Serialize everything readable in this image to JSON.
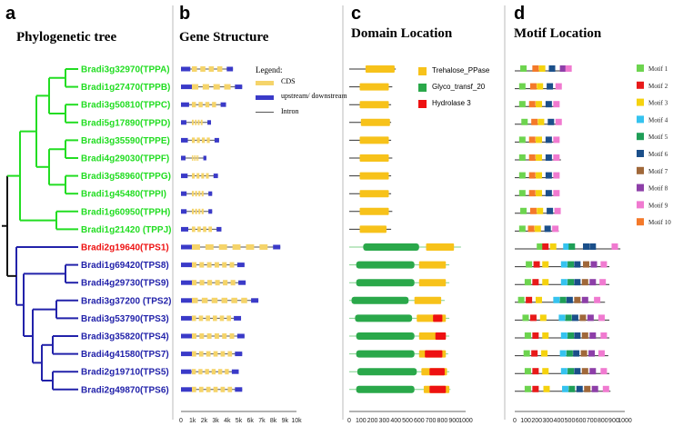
{
  "panels": {
    "a": {
      "letter": "a",
      "title": "Phylogenetic tree"
    },
    "b": {
      "letter": "b",
      "title": "Gene Structure"
    },
    "c": {
      "letter": "c",
      "title": "Domain Location"
    },
    "d": {
      "letter": "d",
      "title": "Motif Location"
    }
  },
  "colors": {
    "green_clade": "#22dd22",
    "red_clade": "#ee1111",
    "blue_clade": "#2222aa",
    "cds": "#f5d46a",
    "utr": "#3a3ac8",
    "trehalose": "#f7c21a",
    "glyco": "#2aa84a",
    "hydrolase": "#ee1111"
  },
  "genes": [
    {
      "label": "Bradi3g32970(TPPA)",
      "clade": "green"
    },
    {
      "label": "Bradi1g27470(TPPB)",
      "clade": "green"
    },
    {
      "label": "Bradi3g50810(TPPC)",
      "clade": "green"
    },
    {
      "label": "Bradi5g17890(TPPD)",
      "clade": "green"
    },
    {
      "label": "Bradi3g35590(TPPE)",
      "clade": "green"
    },
    {
      "label": "Bradi4g29030(TPPF)",
      "clade": "green"
    },
    {
      "label": "Bradi3g58960(TPPG)",
      "clade": "green"
    },
    {
      "label": "Bradi1g45480(TPPI)",
      "clade": "green"
    },
    {
      "label": "Bradi1g60950(TPPH)",
      "clade": "green"
    },
    {
      "label": "Bradi1g21420 (TPPJ)",
      "clade": "green"
    },
    {
      "label": "Bradi2g19640(TPS1)",
      "clade": "red"
    },
    {
      "label": "Bradi1g69420(TPS8)",
      "clade": "blue"
    },
    {
      "label": "Bradi4g29730(TPS9)",
      "clade": "blue"
    },
    {
      "label": "Bradi3g37200 (TPS2)",
      "clade": "blue"
    },
    {
      "label": "Bradi3g53790(TPS3)",
      "clade": "blue"
    },
    {
      "label": "Bradi3g35820(TPS4)",
      "clade": "blue"
    },
    {
      "label": "Bradi4g41580(TPS7)",
      "clade": "blue"
    },
    {
      "label": "Bradi2g19710(TPS5)",
      "clade": "blue"
    },
    {
      "label": "Bradi2g49870(TPS6)",
      "clade": "blue"
    }
  ],
  "gene_structure": {
    "legend_title": "Legend:",
    "legend_items": [
      {
        "label": "CDS",
        "kind": "cds"
      },
      {
        "label": "upstream/ downstream",
        "kind": "utr"
      },
      {
        "label": "Intron",
        "kind": "intron"
      }
    ],
    "axis_ticks": [
      "0",
      "1k",
      "2k",
      "3k",
      "4k",
      "5k",
      "6k",
      "7k",
      "8k",
      "9k",
      "10k"
    ],
    "axis_max": 10000,
    "gene_lengths": [
      4500,
      5300,
      3900,
      2600,
      3300,
      2200,
      3200,
      2700,
      2700,
      3500,
      8600,
      5500,
      5600,
      6700,
      5200,
      5500,
      5300,
      5000,
      5300
    ]
  },
  "domain_location": {
    "legend_items": [
      {
        "label": "Trehalose_PPase",
        "kind": "trehalose"
      },
      {
        "label": "Glyco_transf_20",
        "kind": "glyco"
      },
      {
        "label": "Hydrolase 3",
        "kind": "hydrolase"
      }
    ],
    "axis_ticks": [
      "0",
      "100",
      "200",
      "300",
      "400",
      "500",
      "600",
      "700",
      "800",
      "900",
      "1000"
    ],
    "axis_max": 1000,
    "proteins": [
      {
        "length": 400,
        "domains": [
          {
            "kind": "trehalose",
            "start": 140,
            "end": 390
          }
        ]
      },
      {
        "length": 370,
        "domains": [
          {
            "kind": "trehalose",
            "start": 90,
            "end": 340
          }
        ]
      },
      {
        "length": 360,
        "domains": [
          {
            "kind": "trehalose",
            "start": 90,
            "end": 340
          }
        ]
      },
      {
        "length": 360,
        "domains": [
          {
            "kind": "trehalose",
            "start": 100,
            "end": 350
          }
        ]
      },
      {
        "length": 360,
        "domains": [
          {
            "kind": "trehalose",
            "start": 90,
            "end": 340
          }
        ]
      },
      {
        "length": 370,
        "domains": [
          {
            "kind": "trehalose",
            "start": 90,
            "end": 340
          }
        ]
      },
      {
        "length": 360,
        "domains": [
          {
            "kind": "trehalose",
            "start": 90,
            "end": 340
          }
        ]
      },
      {
        "length": 360,
        "domains": [
          {
            "kind": "trehalose",
            "start": 90,
            "end": 340
          }
        ]
      },
      {
        "length": 370,
        "domains": [
          {
            "kind": "trehalose",
            "start": 90,
            "end": 340
          }
        ]
      },
      {
        "length": 360,
        "domains": [
          {
            "kind": "trehalose",
            "start": 90,
            "end": 320
          }
        ]
      },
      {
        "length": 960,
        "domains": [
          {
            "kind": "glyco",
            "start": 120,
            "end": 600
          },
          {
            "kind": "trehalose",
            "start": 660,
            "end": 900
          }
        ]
      },
      {
        "length": 860,
        "domains": [
          {
            "kind": "glyco",
            "start": 60,
            "end": 560
          },
          {
            "kind": "trehalose",
            "start": 600,
            "end": 830
          }
        ]
      },
      {
        "length": 860,
        "domains": [
          {
            "kind": "glyco",
            "start": 60,
            "end": 560
          },
          {
            "kind": "trehalose",
            "start": 600,
            "end": 830
          }
        ]
      },
      {
        "length": 820,
        "domains": [
          {
            "kind": "glyco",
            "start": 20,
            "end": 510
          },
          {
            "kind": "trehalose",
            "start": 560,
            "end": 790
          }
        ]
      },
      {
        "length": 860,
        "domains": [
          {
            "kind": "glyco",
            "start": 50,
            "end": 540
          },
          {
            "kind": "trehalose",
            "start": 580,
            "end": 830
          },
          {
            "kind": "hydrolase",
            "start": 720,
            "end": 800
          }
        ]
      },
      {
        "length": 860,
        "domains": [
          {
            "kind": "glyco",
            "start": 60,
            "end": 560
          },
          {
            "kind": "trehalose",
            "start": 600,
            "end": 830
          },
          {
            "kind": "hydrolase",
            "start": 740,
            "end": 830
          }
        ]
      },
      {
        "length": 850,
        "domains": [
          {
            "kind": "glyco",
            "start": 60,
            "end": 560
          },
          {
            "kind": "trehalose",
            "start": 600,
            "end": 830
          },
          {
            "kind": "hydrolase",
            "start": 650,
            "end": 800
          }
        ]
      },
      {
        "length": 860,
        "domains": [
          {
            "kind": "glyco",
            "start": 70,
            "end": 580
          },
          {
            "kind": "trehalose",
            "start": 620,
            "end": 840
          },
          {
            "kind": "hydrolase",
            "start": 690,
            "end": 820
          }
        ]
      },
      {
        "length": 870,
        "domains": [
          {
            "kind": "glyco",
            "start": 60,
            "end": 560
          },
          {
            "kind": "trehalose",
            "start": 640,
            "end": 860
          },
          {
            "kind": "hydrolase",
            "start": 690,
            "end": 830
          }
        ]
      }
    ]
  },
  "motif_location": {
    "legend": [
      {
        "label": "Motif 1",
        "color": "#6dd44f"
      },
      {
        "label": "Motif 2",
        "color": "#e81919"
      },
      {
        "label": "Motif 3",
        "color": "#f5d20f"
      },
      {
        "label": "Motif 4",
        "color": "#35c3ef"
      },
      {
        "label": "Motif 5",
        "color": "#1f9e57"
      },
      {
        "label": "Motif 6",
        "color": "#1b4f8a"
      },
      {
        "label": "Motif 7",
        "color": "#a0683a"
      },
      {
        "label": "Motif 8",
        "color": "#8d3fa8"
      },
      {
        "label": "Motif 9",
        "color": "#f07ad0"
      },
      {
        "label": "Motif 10",
        "color": "#f4792a"
      }
    ],
    "axis_ticks": [
      "0",
      "100",
      "200",
      "300",
      "400",
      "500",
      "600",
      "700",
      "800",
      "900",
      "1000"
    ],
    "axis_max": 1000,
    "proteins": [
      {
        "length": 500,
        "motifs": [
          [
            1,
            50
          ],
          [
            10,
            160
          ],
          [
            3,
            220
          ],
          [
            6,
            310
          ],
          [
            8,
            410
          ],
          [
            9,
            460
          ]
        ]
      },
      {
        "length": 420,
        "motifs": [
          [
            1,
            40
          ],
          [
            10,
            140
          ],
          [
            3,
            200
          ],
          [
            6,
            290
          ],
          [
            9,
            370
          ]
        ]
      },
      {
        "length": 400,
        "motifs": [
          [
            1,
            40
          ],
          [
            10,
            130
          ],
          [
            3,
            190
          ],
          [
            6,
            280
          ],
          [
            9,
            350
          ]
        ]
      },
      {
        "length": 400,
        "motifs": [
          [
            1,
            60
          ],
          [
            10,
            150
          ],
          [
            3,
            210
          ],
          [
            6,
            300
          ],
          [
            9,
            370
          ]
        ]
      },
      {
        "length": 400,
        "motifs": [
          [
            1,
            40
          ],
          [
            10,
            130
          ],
          [
            3,
            190
          ],
          [
            6,
            280
          ],
          [
            9,
            350
          ]
        ]
      },
      {
        "length": 420,
        "motifs": [
          [
            1,
            40
          ],
          [
            10,
            130
          ],
          [
            3,
            190
          ],
          [
            6,
            280
          ],
          [
            9,
            350
          ]
        ]
      },
      {
        "length": 400,
        "motifs": [
          [
            1,
            40
          ],
          [
            10,
            130
          ],
          [
            3,
            190
          ],
          [
            6,
            280
          ],
          [
            9,
            350
          ]
        ]
      },
      {
        "length": 400,
        "motifs": [
          [
            1,
            40
          ],
          [
            10,
            130
          ],
          [
            3,
            190
          ],
          [
            6,
            280
          ],
          [
            9,
            350
          ]
        ]
      },
      {
        "length": 400,
        "motifs": [
          [
            1,
            50
          ],
          [
            10,
            140
          ],
          [
            3,
            200
          ],
          [
            6,
            290
          ],
          [
            9,
            360
          ]
        ]
      },
      {
        "length": 400,
        "motifs": [
          [
            1,
            40
          ],
          [
            10,
            120
          ],
          [
            3,
            180
          ],
          [
            6,
            270
          ],
          [
            9,
            340
          ]
        ]
      },
      {
        "length": 960,
        "motifs": [
          [
            1,
            200
          ],
          [
            2,
            250
          ],
          [
            3,
            320
          ],
          [
            4,
            440
          ],
          [
            5,
            490
          ],
          [
            6,
            620
          ],
          [
            6,
            680
          ],
          [
            9,
            880
          ]
        ]
      },
      {
        "length": 860,
        "motifs": [
          [
            1,
            100
          ],
          [
            2,
            170
          ],
          [
            3,
            250
          ],
          [
            4,
            420
          ],
          [
            5,
            480
          ],
          [
            6,
            540
          ],
          [
            7,
            620
          ],
          [
            8,
            690
          ],
          [
            9,
            780
          ]
        ]
      },
      {
        "length": 860,
        "motifs": [
          [
            1,
            90
          ],
          [
            2,
            160
          ],
          [
            3,
            250
          ],
          [
            4,
            420
          ],
          [
            5,
            480
          ],
          [
            6,
            540
          ],
          [
            7,
            610
          ],
          [
            8,
            680
          ],
          [
            9,
            770
          ]
        ]
      },
      {
        "length": 820,
        "motifs": [
          [
            1,
            30
          ],
          [
            2,
            100
          ],
          [
            3,
            190
          ],
          [
            4,
            350
          ],
          [
            5,
            410
          ],
          [
            6,
            470
          ],
          [
            7,
            540
          ],
          [
            8,
            610
          ],
          [
            9,
            720
          ]
        ]
      },
      {
        "length": 860,
        "motifs": [
          [
            1,
            70
          ],
          [
            2,
            140
          ],
          [
            3,
            230
          ],
          [
            4,
            400
          ],
          [
            5,
            460
          ],
          [
            6,
            520
          ],
          [
            7,
            590
          ],
          [
            8,
            660
          ],
          [
            9,
            760
          ]
        ]
      },
      {
        "length": 860,
        "motifs": [
          [
            1,
            90
          ],
          [
            2,
            160
          ],
          [
            3,
            250
          ],
          [
            4,
            420
          ],
          [
            5,
            480
          ],
          [
            6,
            540
          ],
          [
            7,
            610
          ],
          [
            8,
            680
          ],
          [
            9,
            780
          ]
        ]
      },
      {
        "length": 850,
        "motifs": [
          [
            1,
            80
          ],
          [
            2,
            150
          ],
          [
            3,
            240
          ],
          [
            4,
            410
          ],
          [
            5,
            470
          ],
          [
            6,
            530
          ],
          [
            7,
            600
          ],
          [
            8,
            670
          ],
          [
            9,
            760
          ]
        ]
      },
      {
        "length": 860,
        "motifs": [
          [
            1,
            90
          ],
          [
            2,
            160
          ],
          [
            3,
            250
          ],
          [
            4,
            420
          ],
          [
            5,
            480
          ],
          [
            6,
            540
          ],
          [
            7,
            610
          ],
          [
            8,
            680
          ],
          [
            9,
            780
          ]
        ]
      },
      {
        "length": 870,
        "motifs": [
          [
            1,
            90
          ],
          [
            2,
            160
          ],
          [
            3,
            260
          ],
          [
            4,
            430
          ],
          [
            5,
            490
          ],
          [
            6,
            560
          ],
          [
            7,
            630
          ],
          [
            8,
            700
          ],
          [
            9,
            800
          ]
        ]
      }
    ]
  }
}
